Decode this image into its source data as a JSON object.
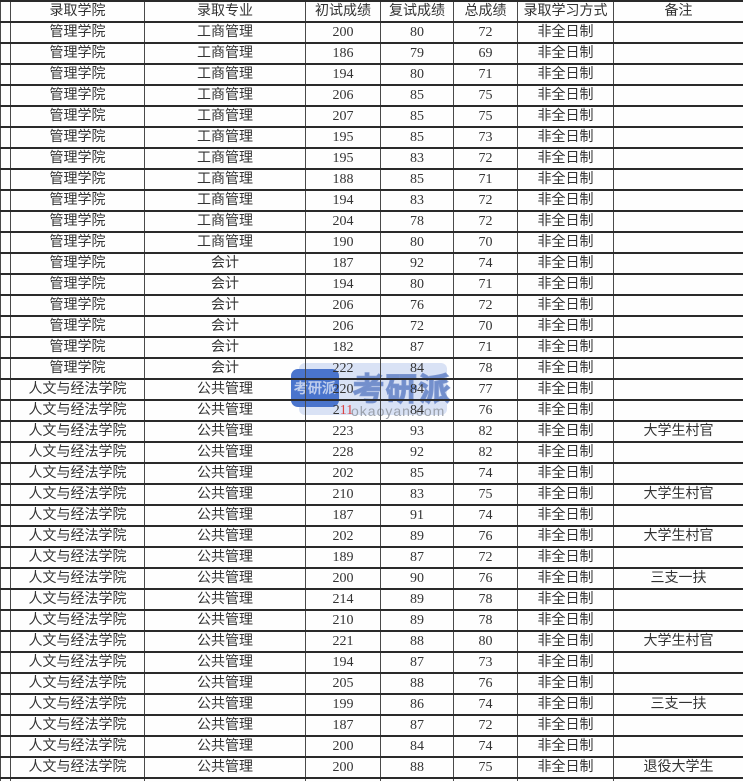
{
  "table": {
    "columns": [
      {
        "key": "college",
        "label": "录取学院"
      },
      {
        "key": "major",
        "label": "录取专业"
      },
      {
        "key": "score1",
        "label": "初试成绩"
      },
      {
        "key": "score2",
        "label": "复试成绩"
      },
      {
        "key": "total",
        "label": "总成绩"
      },
      {
        "key": "mode",
        "label": "录取学习方式"
      },
      {
        "key": "remark",
        "label": "备注"
      }
    ],
    "rows": [
      {
        "college": "管理学院",
        "major": "工商管理",
        "score1": "200",
        "score2": "80",
        "total": "72",
        "mode": "非全日制",
        "remark": ""
      },
      {
        "college": "管理学院",
        "major": "工商管理",
        "score1": "186",
        "score2": "79",
        "total": "69",
        "mode": "非全日制",
        "remark": ""
      },
      {
        "college": "管理学院",
        "major": "工商管理",
        "score1": "194",
        "score2": "80",
        "total": "71",
        "mode": "非全日制",
        "remark": ""
      },
      {
        "college": "管理学院",
        "major": "工商管理",
        "score1": "206",
        "score2": "85",
        "total": "75",
        "mode": "非全日制",
        "remark": ""
      },
      {
        "college": "管理学院",
        "major": "工商管理",
        "score1": "207",
        "score2": "85",
        "total": "75",
        "mode": "非全日制",
        "remark": ""
      },
      {
        "college": "管理学院",
        "major": "工商管理",
        "score1": "195",
        "score2": "85",
        "total": "73",
        "mode": "非全日制",
        "remark": ""
      },
      {
        "college": "管理学院",
        "major": "工商管理",
        "score1": "195",
        "score2": "83",
        "total": "72",
        "mode": "非全日制",
        "remark": ""
      },
      {
        "college": "管理学院",
        "major": "工商管理",
        "score1": "188",
        "score2": "85",
        "total": "71",
        "mode": "非全日制",
        "remark": ""
      },
      {
        "college": "管理学院",
        "major": "工商管理",
        "score1": "194",
        "score2": "83",
        "total": "72",
        "mode": "非全日制",
        "remark": ""
      },
      {
        "college": "管理学院",
        "major": "工商管理",
        "score1": "204",
        "score2": "78",
        "total": "72",
        "mode": "非全日制",
        "remark": ""
      },
      {
        "college": "管理学院",
        "major": "工商管理",
        "score1": "190",
        "score2": "80",
        "total": "70",
        "mode": "非全日制",
        "remark": ""
      },
      {
        "college": "管理学院",
        "major": "会计",
        "score1": "187",
        "score2": "92",
        "total": "74",
        "mode": "非全日制",
        "remark": ""
      },
      {
        "college": "管理学院",
        "major": "会计",
        "score1": "194",
        "score2": "80",
        "total": "71",
        "mode": "非全日制",
        "remark": ""
      },
      {
        "college": "管理学院",
        "major": "会计",
        "score1": "206",
        "score2": "76",
        "total": "72",
        "mode": "非全日制",
        "remark": ""
      },
      {
        "college": "管理学院",
        "major": "会计",
        "score1": "206",
        "score2": "72",
        "total": "70",
        "mode": "非全日制",
        "remark": ""
      },
      {
        "college": "管理学院",
        "major": "会计",
        "score1": "182",
        "score2": "87",
        "total": "71",
        "mode": "非全日制",
        "remark": ""
      },
      {
        "college": "管理学院",
        "major": "会计",
        "score1": "222",
        "score2": "84",
        "total": "78",
        "mode": "非全日制",
        "remark": ""
      },
      {
        "college": "人文与经法学院",
        "major": "公共管理",
        "score1": "220",
        "score2": "84",
        "total": "77",
        "mode": "非全日制",
        "remark": ""
      },
      {
        "college": "人文与经法学院",
        "major": "公共管理",
        "score1": "211",
        "score1_red_part": "11",
        "score2": "84",
        "total": "76",
        "mode": "非全日制",
        "remark": ""
      },
      {
        "college": "人文与经法学院",
        "major": "公共管理",
        "score1": "223",
        "score2": "93",
        "total": "82",
        "mode": "非全日制",
        "remark": "大学生村官"
      },
      {
        "college": "人文与经法学院",
        "major": "公共管理",
        "score1": "228",
        "score2": "92",
        "total": "82",
        "mode": "非全日制",
        "remark": ""
      },
      {
        "college": "人文与经法学院",
        "major": "公共管理",
        "score1": "202",
        "score2": "85",
        "total": "74",
        "mode": "非全日制",
        "remark": ""
      },
      {
        "college": "人文与经法学院",
        "major": "公共管理",
        "score1": "210",
        "score2": "83",
        "total": "75",
        "mode": "非全日制",
        "remark": "大学生村官"
      },
      {
        "college": "人文与经法学院",
        "major": "公共管理",
        "score1": "187",
        "score2": "91",
        "total": "74",
        "mode": "非全日制",
        "remark": ""
      },
      {
        "college": "人文与经法学院",
        "major": "公共管理",
        "score1": "202",
        "score2": "89",
        "total": "76",
        "mode": "非全日制",
        "remark": "大学生村官"
      },
      {
        "college": "人文与经法学院",
        "major": "公共管理",
        "score1": "189",
        "score2": "87",
        "total": "72",
        "mode": "非全日制",
        "remark": ""
      },
      {
        "college": "人文与经法学院",
        "major": "公共管理",
        "score1": "200",
        "score2": "90",
        "total": "76",
        "mode": "非全日制",
        "remark": "三支一扶"
      },
      {
        "college": "人文与经法学院",
        "major": "公共管理",
        "score1": "214",
        "score2": "89",
        "total": "78",
        "mode": "非全日制",
        "remark": ""
      },
      {
        "college": "人文与经法学院",
        "major": "公共管理",
        "score1": "210",
        "score2": "89",
        "total": "78",
        "mode": "非全日制",
        "remark": ""
      },
      {
        "college": "人文与经法学院",
        "major": "公共管理",
        "score1": "221",
        "score2": "88",
        "total": "80",
        "mode": "非全日制",
        "remark": "大学生村官"
      },
      {
        "college": "人文与经法学院",
        "major": "公共管理",
        "score1": "194",
        "score2": "87",
        "total": "73",
        "mode": "非全日制",
        "remark": ""
      },
      {
        "college": "人文与经法学院",
        "major": "公共管理",
        "score1": "205",
        "score2": "88",
        "total": "76",
        "mode": "非全日制",
        "remark": ""
      },
      {
        "college": "人文与经法学院",
        "major": "公共管理",
        "score1": "199",
        "score2": "86",
        "total": "74",
        "mode": "非全日制",
        "remark": "三支一扶"
      },
      {
        "college": "人文与经法学院",
        "major": "公共管理",
        "score1": "187",
        "score2": "87",
        "total": "72",
        "mode": "非全日制",
        "remark": ""
      },
      {
        "college": "人文与经法学院",
        "major": "公共管理",
        "score1": "200",
        "score2": "84",
        "total": "74",
        "mode": "非全日制",
        "remark": ""
      },
      {
        "college": "人文与经法学院",
        "major": "公共管理",
        "score1": "200",
        "score2": "88",
        "total": "75",
        "mode": "非全日制",
        "remark": "退役大学生"
      }
    ]
  },
  "watermark": {
    "logo_text": "考研派",
    "brand_text": "考研派",
    "site_text": "okaoyan.com",
    "logo_color": "#4a74cc",
    "panel_color": "#bacbec",
    "red_digit_color": "#d94343",
    "site_text_color": "#9198a2"
  }
}
